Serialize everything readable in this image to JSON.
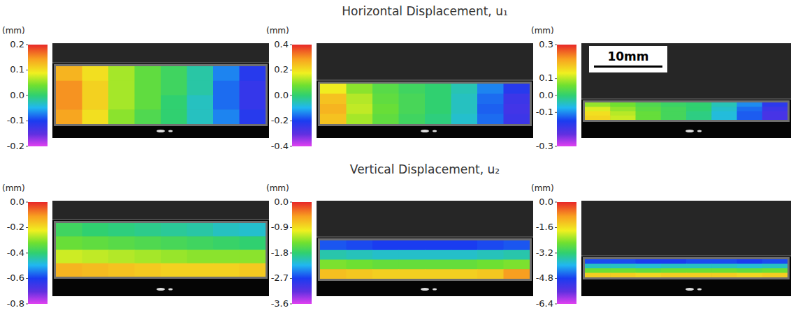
{
  "chart_data": [
    {
      "type": "heatmap",
      "colorbar": {
        "label": "(mm)",
        "range": [
          -0.2,
          0.2
        ],
        "ticks": [
          0.2,
          0.1,
          {
            "value": 0,
            "label": "0.0"
          },
          -0.1,
          -0.2
        ]
      },
      "cells": [
        [
          0.13,
          0.1,
          0.06,
          0.03,
          0.01,
          -0.02,
          -0.07,
          -0.11
        ],
        [
          0.15,
          0.11,
          0.06,
          0.03,
          0.01,
          -0.02,
          -0.08,
          -0.12
        ],
        [
          0.15,
          0.11,
          0.06,
          0.03,
          0.0,
          -0.03,
          -0.08,
          -0.12
        ],
        [
          0.14,
          0.1,
          0.05,
          0.02,
          0.0,
          -0.03,
          -0.07,
          -0.11
        ]
      ]
    },
    {
      "type": "heatmap",
      "title": "Horizontal Displacement, u₁",
      "colorbar": {
        "label": "(mm)",
        "range": [
          -0.4,
          0.4
        ],
        "ticks": [
          0.4,
          0.2,
          {
            "value": 0,
            "label": "0.0"
          },
          -0.2,
          -0.4
        ]
      },
      "cells": [
        [
          0.18,
          0.1,
          0.05,
          0.02,
          0.0,
          -0.05,
          -0.14,
          -0.22
        ],
        [
          0.24,
          0.13,
          0.06,
          0.03,
          0.0,
          -0.06,
          -0.16,
          -0.25
        ],
        [
          0.26,
          0.14,
          0.07,
          0.03,
          0.0,
          -0.06,
          -0.17,
          -0.26
        ],
        [
          0.24,
          0.12,
          0.06,
          0.02,
          -0.01,
          -0.07,
          -0.16,
          -0.25
        ]
      ]
    },
    {
      "type": "heatmap",
      "annotation": "10mm",
      "colorbar": {
        "label": "(mm)",
        "range": [
          -0.3,
          0.3
        ],
        "ticks": [
          0.3,
          0.1,
          {
            "value": 0,
            "label": "0.0"
          },
          -0.1,
          -0.3
        ]
      },
      "cells": [
        [
          0.08,
          0.06,
          0.03,
          0.01,
          0.0,
          -0.04,
          -0.1,
          -0.17
        ],
        [
          0.12,
          0.08,
          0.04,
          0.02,
          0.0,
          -0.05,
          -0.12,
          -0.19
        ],
        [
          0.15,
          0.1,
          0.05,
          0.02,
          -0.01,
          -0.06,
          -0.13,
          -0.2
        ],
        [
          0.16,
          0.11,
          0.05,
          0.02,
          -0.01,
          -0.06,
          -0.13,
          -0.2
        ]
      ]
    },
    {
      "type": "heatmap",
      "colorbar": {
        "label": "(mm)",
        "range": [
          -0.8,
          0
        ],
        "ticks": [
          {
            "value": 0,
            "label": "0.0"
          },
          -0.2,
          -0.4,
          -0.6,
          -0.8
        ]
      },
      "cells": [
        [
          -0.38,
          -0.4,
          -0.41,
          -0.42,
          -0.43,
          -0.44,
          -0.46,
          -0.47
        ],
        [
          -0.33,
          -0.34,
          -0.35,
          -0.36,
          -0.37,
          -0.38,
          -0.39,
          -0.4
        ],
        [
          -0.25,
          -0.26,
          -0.27,
          -0.28,
          -0.29,
          -0.3,
          -0.3,
          -0.3
        ],
        [
          -0.14,
          -0.15,
          -0.16,
          -0.17,
          -0.18,
          -0.18,
          -0.18,
          -0.17
        ]
      ]
    },
    {
      "type": "heatmap",
      "title": "Vertical Displacement, u₂",
      "colorbar": {
        "label": "(mm)",
        "range": [
          -3.6,
          0
        ],
        "ticks": [
          {
            "value": 0,
            "label": "0.0"
          },
          -0.9,
          -1.8,
          -2.7,
          -3.6
        ]
      },
      "cells": [
        [
          -2.6,
          -2.65,
          -2.7,
          -2.7,
          -2.7,
          -2.7,
          -2.65,
          -2.6
        ],
        [
          -2.0,
          -2.05,
          -2.1,
          -2.1,
          -2.1,
          -2.1,
          -2.05,
          -2.0
        ],
        [
          -1.4,
          -1.45,
          -1.5,
          -1.5,
          -1.5,
          -1.5,
          -1.45,
          -1.4
        ],
        [
          -0.7,
          -0.75,
          -0.8,
          -0.8,
          -0.8,
          -0.8,
          -0.75,
          -0.5
        ]
      ]
    },
    {
      "type": "heatmap",
      "colorbar": {
        "label": "(mm)",
        "range": [
          -6.4,
          0
        ],
        "ticks": [
          {
            "value": 0,
            "label": "0.0"
          },
          -1.6,
          -3.2,
          -4.8,
          -6.4
        ]
      },
      "cells": [
        [
          -4.7,
          -4.7,
          -4.8,
          -4.8,
          -4.7,
          -4.7,
          -4.8,
          -4.7
        ],
        [
          -3.7,
          -3.7,
          -3.8,
          -3.7,
          -3.7,
          -3.7,
          -3.8,
          -3.7
        ],
        [
          -2.6,
          -2.6,
          -2.7,
          -2.6,
          -2.6,
          -2.6,
          -2.7,
          -2.6
        ],
        [
          -1.4,
          -1.4,
          -1.5,
          -1.4,
          -1.4,
          -1.4,
          -1.5,
          -1.4
        ]
      ]
    }
  ]
}
